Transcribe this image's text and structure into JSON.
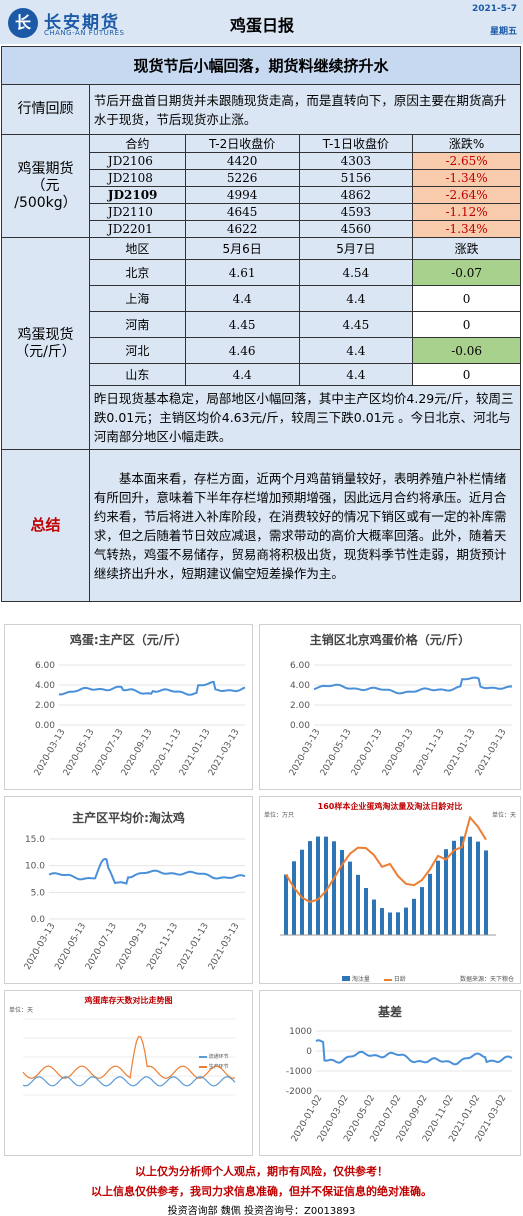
{
  "header": {
    "brand": "长安期货",
    "brand_en": "CHANG-AN FUTURES",
    "title": "鸡蛋日报",
    "date": "2021-5-7",
    "weekday": "星期五",
    "brand_color": "#1c5aa8"
  },
  "headline": "现货节后小幅回落，期货料继续挤升水",
  "review": {
    "label": "行情回顾",
    "text": "节后开盘首日期货并未跟随现货走高，而是直转向下，原因主要在期货高升水于现货，节后现货亦止涨。"
  },
  "futures": {
    "label_line1": "鸡蛋期货",
    "label_line2": "（元",
    "label_line3": "/500kg）",
    "headers": [
      "合约",
      "T-2日收盘价",
      "T-1日收盘价",
      "涨跌%"
    ],
    "rows": [
      {
        "contract": "JD2106",
        "t2": "4420",
        "t1": "4303",
        "chg": "-2.65%"
      },
      {
        "contract": "JD2108",
        "t2": "5226",
        "t1": "5156",
        "chg": "-1.34%"
      },
      {
        "contract": "JD2109",
        "t2": "4994",
        "t1": "4862",
        "chg": "-2.64%"
      },
      {
        "contract": "JD2110",
        "t2": "4645",
        "t1": "4593",
        "chg": "-1.12%"
      },
      {
        "contract": "JD2201",
        "t2": "4622",
        "t1": "4560",
        "chg": "-1.34%"
      }
    ]
  },
  "spot": {
    "label_line1": "鸡蛋现货",
    "label_line2": "（元/斤）",
    "headers": [
      "地区",
      "5月6日",
      "5月7日",
      "涨跌"
    ],
    "rows": [
      {
        "region": "北京",
        "d1": "4.61",
        "d2": "4.54",
        "chg": "-0.07"
      },
      {
        "region": "上海",
        "d1": "4.4",
        "d2": "4.4",
        "chg": "0"
      },
      {
        "region": "河南",
        "d1": "4.45",
        "d2": "4.45",
        "chg": "0"
      },
      {
        "region": "河北",
        "d1": "4.46",
        "d2": "4.4",
        "chg": "-0.06"
      },
      {
        "region": "山东",
        "d1": "4.4",
        "d2": "4.4",
        "chg": "0"
      }
    ],
    "comment": "昨日现货基本稳定，局部地区小幅回落，其中主产区均价4.29元/斤，较周三跌0.01元；主销区均价4.63元/斤，较周三下跌0.01元 。今日北京、河北与河南部分地区小幅走跌。"
  },
  "summary": {
    "label": "总结",
    "text": "基本面来看，存栏方面，近两个月鸡苗销量较好，表明养殖户补栏情绪有所回升，意味着下半年存栏增加预期增强，因此远月合约将承压。近月合约来看，节后将进入补库阶段，在消费较好的情况下销区或有一定的补库需求，但之后随着节日效应减退，需求带动的高价大概率回落。此外，随着天气转热，鸡蛋不易储存，贸易商将积极出货，现货料季节性走弱，期货预计继续挤出升水，短期建议偏空短差操作为主。"
  },
  "charts": {
    "c1": {
      "title": "鸡蛋:主产区（元/斤）",
      "yticks": [
        "6.00",
        "4.00",
        "2.00",
        "0.00"
      ],
      "xticks": [
        "2020-03-13",
        "2020-05-13",
        "2020-07-13",
        "2020-09-13",
        "2020-11-13",
        "2021-01-13",
        "2021-03-13"
      ],
      "color": "#4a90d9"
    },
    "c2": {
      "title": "主销区北京鸡蛋价格（元/斤）",
      "yticks": [
        "6.00",
        "4.00",
        "2.00",
        "0.00"
      ],
      "xticks": [
        "2020-03-13",
        "2020-05-13",
        "2020-07-13",
        "2020-09-13",
        "2020-11-13",
        "2021-01-13",
        "2021-03-13"
      ],
      "color": "#4a90d9"
    },
    "c3": {
      "title": "主产区平均价:淘汰鸡",
      "yticks": [
        "15.0",
        "10.0",
        "5.0",
        "0.0"
      ],
      "xticks": [
        "2020-03-13",
        "2020-05-13",
        "2020-07-13",
        "2020-09-13",
        "2020-11-13",
        "2021-01-13",
        "2021-03-13"
      ],
      "color": "#4a90d9"
    },
    "c4": {
      "title": "160样本企业蛋鸡淘汰量及淘汰日龄对比",
      "unit_left": "单位：万只",
      "unit_right": "单位：天",
      "legend_bar": "淘汰量",
      "legend_line": "日龄",
      "source": "数据来源：天下粮仓",
      "bar_color": "#2e75b6",
      "line_color": "#ed7d31"
    },
    "c5": {
      "title": "鸡蛋库存天数对比走势图",
      "unit": "单位：天",
      "legend1": "流通环节",
      "legend2": "生产环节",
      "color1": "#5b9bd5",
      "color2": "#ed7d31"
    },
    "c6": {
      "title": "基差",
      "yticks": [
        "1000",
        "0",
        "-1000",
        "-2000"
      ],
      "xticks": [
        "2020-01-02",
        "2020-03-02",
        "2020-05-02",
        "2020-07-02",
        "2020-09-02",
        "2020-11-02",
        "2021-01-02",
        "2021-03-02"
      ],
      "color": "#4a90d9"
    }
  },
  "footer": {
    "line1": "以上仅为分析师个人观点，期市有风险，仅供参考！",
    "line2": "以上信息仅供参考，我司力求信息准确，但并不保证信息的绝对准确。",
    "line3": "投资咨询部  魏佩  投资咨询号：Z0013893"
  }
}
